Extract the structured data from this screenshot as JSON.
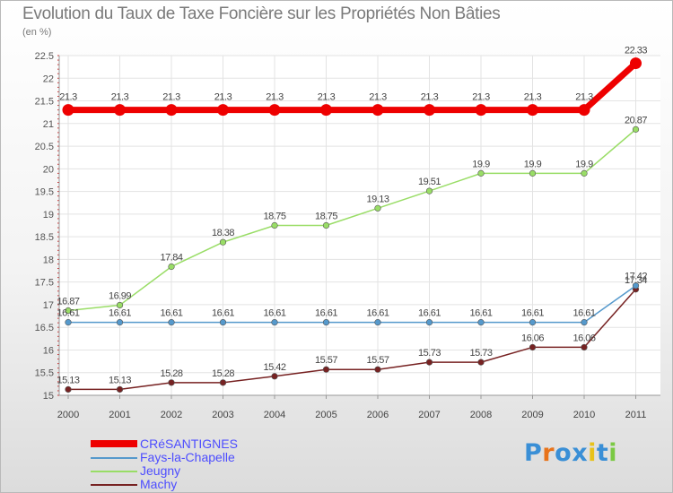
{
  "chart_data": {
    "type": "line",
    "title": "Evolution du Taux de Taxe Foncière sur les Propriétés Non Bâties",
    "ylabel": "(en %)",
    "xlabel": "",
    "categories": [
      "2000",
      "2001",
      "2002",
      "2003",
      "2004",
      "2005",
      "2006",
      "2007",
      "2008",
      "2009",
      "2010",
      "2011"
    ],
    "ylim": [
      15,
      22.5
    ],
    "yticks": [
      "15",
      "15.5",
      "16",
      "16.5",
      "17",
      "17.5",
      "18",
      "18.5",
      "19",
      "19.5",
      "20",
      "20.5",
      "21",
      "21.5",
      "22",
      "22.5"
    ],
    "series": [
      {
        "name": "CRéSANTIGNES",
        "color": "#ee0000",
        "labels": [
          "21.3",
          "21.3",
          "21.3",
          "21.3",
          "21.3",
          "21.3",
          "21.3",
          "21.3",
          "21.3",
          "21.3",
          "21.3",
          "22.33"
        ],
        "values": [
          21.3,
          21.3,
          21.3,
          21.3,
          21.3,
          21.3,
          21.3,
          21.3,
          21.3,
          21.3,
          21.3,
          22.33
        ]
      },
      {
        "name": "Fays-la-Chapelle",
        "color": "#5599cc",
        "labels": [
          "16.61",
          "16.61",
          "16.61",
          "16.61",
          "16.61",
          "16.61",
          "16.61",
          "16.61",
          "16.61",
          "16.61",
          "16.61",
          "17.42"
        ],
        "values": [
          16.61,
          16.61,
          16.61,
          16.61,
          16.61,
          16.61,
          16.61,
          16.61,
          16.61,
          16.61,
          16.61,
          17.42
        ]
      },
      {
        "name": "Jeugny",
        "color": "#99dd66",
        "labels": [
          "16.87",
          "16.99",
          "17.84",
          "18.38",
          "18.75",
          "18.75",
          "19.13",
          "19.51",
          "19.9",
          "19.9",
          "19.9",
          "20.87"
        ],
        "values": [
          16.87,
          16.99,
          17.84,
          18.38,
          18.75,
          18.75,
          19.13,
          19.51,
          19.9,
          19.9,
          19.9,
          20.87
        ]
      },
      {
        "name": "Machy",
        "color": "#772222",
        "labels": [
          "15.13",
          "15.13",
          "15.28",
          "15.28",
          "15.42",
          "15.57",
          "15.57",
          "15.73",
          "15.73",
          "16.06",
          "16.06",
          "17.34"
        ],
        "values": [
          15.13,
          15.13,
          15.28,
          15.28,
          15.42,
          15.57,
          15.57,
          15.73,
          15.73,
          16.06,
          16.06,
          17.34
        ]
      }
    ]
  },
  "branding": {
    "letters": [
      "P",
      "r",
      "o",
      "x",
      "i",
      "t",
      "i"
    ],
    "colors": [
      "#3a8fd6",
      "#e8731a",
      "#3a8fd6",
      "#3a8fd6",
      "#e8c21a",
      "#3a8fd6",
      "#7ac943"
    ]
  }
}
